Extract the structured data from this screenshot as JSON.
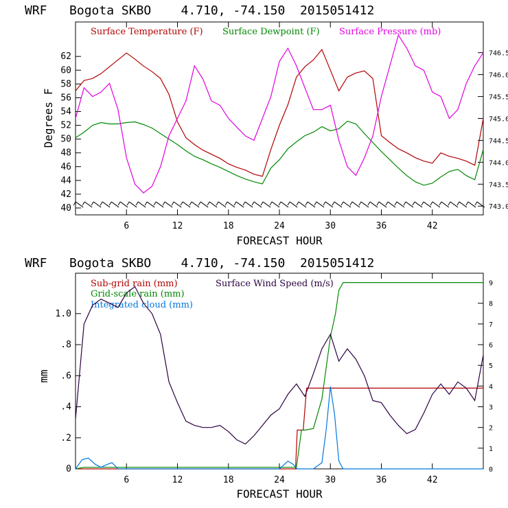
{
  "chart_data": [
    {
      "type": "line",
      "title": "WRF   Bogota SKBO    4.710, -74.150  2015051412",
      "xlabel": "FORECAST HOUR",
      "ylabel": "Degrees F",
      "xlim": [
        0,
        48
      ],
      "ylim": [
        39,
        67
      ],
      "xticks": [
        6,
        12,
        18,
        24,
        30,
        36,
        42
      ],
      "yticks": [
        40,
        42,
        44,
        46,
        48,
        50,
        52,
        54,
        56,
        58,
        60,
        62
      ],
      "y2lim": [
        742.8,
        747.2
      ],
      "y2ticks": [
        743.0,
        743.5,
        744.0,
        744.5,
        745.0,
        745.5,
        746.0,
        746.5
      ],
      "y2ticklabels": [
        "743.0",
        "743.5",
        "744.0",
        "744.5",
        "745.0",
        "745.5",
        "746.0",
        "746.5"
      ],
      "wind_barbs": true,
      "series": [
        {
          "name": "Surface Temperature (F)",
          "color": "#b20000",
          "axis": "left",
          "x": [
            0,
            1,
            2,
            3,
            4,
            5,
            6,
            7,
            8,
            9,
            10,
            11,
            12,
            13,
            14,
            15,
            16,
            17,
            18,
            19,
            20,
            21,
            22,
            23,
            24,
            25,
            26,
            27,
            28,
            29,
            30,
            31,
            32,
            33,
            34,
            35,
            36,
            37,
            38,
            39,
            40,
            41,
            42,
            43,
            44,
            45,
            46,
            47,
            48
          ],
          "values": [
            57,
            58.5,
            58.8,
            59.5,
            60.5,
            61.5,
            62.5,
            61.6,
            60.6,
            59.8,
            58.8,
            56.5,
            52.5,
            50.2,
            49.2,
            48.4,
            47.8,
            47.2,
            46.4,
            45.9,
            45.5,
            44.9,
            44.6,
            48.5,
            52,
            55,
            59,
            60.5,
            61.5,
            63,
            60,
            57,
            59,
            59.6,
            59.9,
            58.8,
            50.5,
            49.5,
            48.6,
            48.0,
            47.3,
            46.8,
            46.5,
            48.0,
            47.5,
            47.2,
            46.8,
            46.2,
            53
          ]
        },
        {
          "name": "Surface Dewpoint (F)",
          "color": "#008800",
          "axis": "left",
          "x": [
            0,
            1,
            2,
            3,
            4,
            5,
            6,
            7,
            8,
            9,
            10,
            11,
            12,
            13,
            14,
            15,
            16,
            17,
            18,
            19,
            20,
            21,
            22,
            23,
            24,
            25,
            26,
            27,
            28,
            29,
            30,
            31,
            32,
            33,
            34,
            35,
            36,
            37,
            38,
            39,
            40,
            41,
            42,
            43,
            44,
            45,
            46,
            47,
            48
          ],
          "values": [
            50.2,
            51,
            52,
            52.4,
            52.2,
            52.2,
            52.4,
            52.5,
            52.1,
            51.6,
            50.8,
            50,
            49.2,
            48.3,
            47.5,
            47,
            46.4,
            45.9,
            45.3,
            44.7,
            44.2,
            43.8,
            43.5,
            45.8,
            47,
            48.6,
            49.6,
            50.5,
            51,
            51.8,
            51.2,
            51.5,
            52.6,
            52.2,
            50.8,
            49.5,
            48.2,
            47,
            45.8,
            44.7,
            43.8,
            43.3,
            43.6,
            44.5,
            45.3,
            45.6,
            44.7,
            44.1,
            48.5
          ]
        },
        {
          "name": "Surface Pressure (mb)",
          "color": "#e000e0",
          "axis": "right",
          "x": [
            0,
            1,
            2,
            3,
            4,
            5,
            6,
            7,
            8,
            9,
            10,
            11,
            12,
            13,
            14,
            15,
            16,
            17,
            18,
            19,
            20,
            21,
            22,
            23,
            24,
            25,
            26,
            27,
            28,
            29,
            30,
            31,
            32,
            33,
            34,
            35,
            36,
            37,
            38,
            39,
            40,
            41,
            42,
            43,
            44,
            45,
            46,
            47,
            48
          ],
          "values": [
            745.0,
            745.7,
            745.5,
            745.6,
            745.8,
            745.2,
            744.1,
            743.5,
            743.3,
            743.45,
            743.9,
            744.6,
            745.0,
            745.4,
            746.2,
            745.9,
            745.4,
            745.3,
            745.0,
            744.8,
            744.6,
            744.5,
            745.0,
            745.5,
            746.3,
            746.6,
            746.2,
            745.7,
            745.2,
            745.2,
            745.3,
            744.5,
            743.9,
            743.7,
            744.1,
            744.6,
            745.5,
            746.2,
            746.9,
            746.6,
            746.2,
            746.1,
            745.6,
            745.5,
            745.0,
            745.2,
            745.8,
            746.2,
            746.5
          ]
        }
      ]
    },
    {
      "type": "line",
      "title": "WRF   Bogota SKBO    4.710, -74.150  2015051412",
      "xlabel": "FORECAST HOUR",
      "ylabel": "mm",
      "xlim": [
        0,
        48
      ],
      "ylim": [
        0,
        1.26
      ],
      "xticks": [
        6,
        12,
        18,
        24,
        30,
        36,
        42
      ],
      "yticks": [
        0,
        0.2,
        0.4,
        0.6,
        0.8,
        1.0
      ],
      "yticklabels": [
        "0",
        ".2",
        ".4",
        ".6",
        ".8",
        "1.0"
      ],
      "y2lim": [
        0,
        9.45
      ],
      "y2ticks": [
        0,
        1,
        2,
        3,
        4,
        5,
        6,
        7,
        8,
        9
      ],
      "y2ticklabels": [
        "0",
        "1",
        "2",
        "3",
        "4",
        "5",
        "6",
        "7",
        "8",
        "9"
      ],
      "series": [
        {
          "name": "Sub-grid rain (mm)",
          "color": "#b20000",
          "axis": "left",
          "x": [
            0,
            25.9,
            26.1,
            26.8,
            27.2,
            48
          ],
          "values": [
            0,
            0,
            0.25,
            0.25,
            0.52,
            0.52
          ]
        },
        {
          "name": "Grid-scale rain (mm)",
          "color": "#008800",
          "axis": "left",
          "x": [
            0,
            1,
            26,
            26.6,
            27,
            28,
            29,
            30,
            30.6,
            31,
            31.5,
            48
          ],
          "values": [
            0,
            0.01,
            0.01,
            0.25,
            0.25,
            0.26,
            0.45,
            0.85,
            1.0,
            1.15,
            1.2,
            1.2
          ]
        },
        {
          "name": "Integrated cloud (mm)",
          "color": "#0077dd",
          "axis": "left",
          "x": [
            0,
            0.8,
            1.5,
            2.3,
            3,
            3.8,
            4.3,
            5,
            6,
            24,
            25,
            25.6,
            26.1,
            28,
            29,
            29.5,
            30,
            30.5,
            31,
            31.5,
            48
          ],
          "values": [
            0,
            0.06,
            0.07,
            0.03,
            0.01,
            0.03,
            0.04,
            0,
            0,
            0,
            0.05,
            0.03,
            0,
            0,
            0.04,
            0.25,
            0.53,
            0.35,
            0.05,
            0,
            0
          ]
        },
        {
          "name": "Surface Wind Speed (m/s)",
          "color": "#2a0040",
          "axis": "right",
          "x": [
            0,
            1,
            2,
            3,
            4,
            5,
            6,
            7,
            8,
            9,
            10,
            11,
            12,
            13,
            14,
            15,
            16,
            17,
            18,
            19,
            20,
            21,
            22,
            23,
            24,
            25,
            26,
            27,
            28,
            29,
            30,
            31,
            32,
            33,
            34,
            35,
            36,
            37,
            38,
            39,
            40,
            41,
            42,
            43,
            44,
            45,
            46,
            47,
            48
          ],
          "values": [
            2.4,
            7.0,
            7.9,
            8.2,
            8.0,
            7.8,
            8.5,
            8.8,
            8.0,
            7.5,
            6.5,
            4.2,
            3.2,
            2.3,
            2.1,
            2.0,
            2.0,
            2.1,
            1.8,
            1.4,
            1.2,
            1.6,
            2.1,
            2.6,
            2.9,
            3.6,
            4.1,
            3.5,
            4.6,
            5.8,
            6.5,
            5.2,
            5.8,
            5.3,
            4.5,
            3.3,
            3.2,
            2.6,
            2.1,
            1.7,
            1.9,
            2.7,
            3.6,
            4.1,
            3.6,
            4.2,
            3.9,
            3.3,
            5.5
          ]
        }
      ]
    }
  ]
}
